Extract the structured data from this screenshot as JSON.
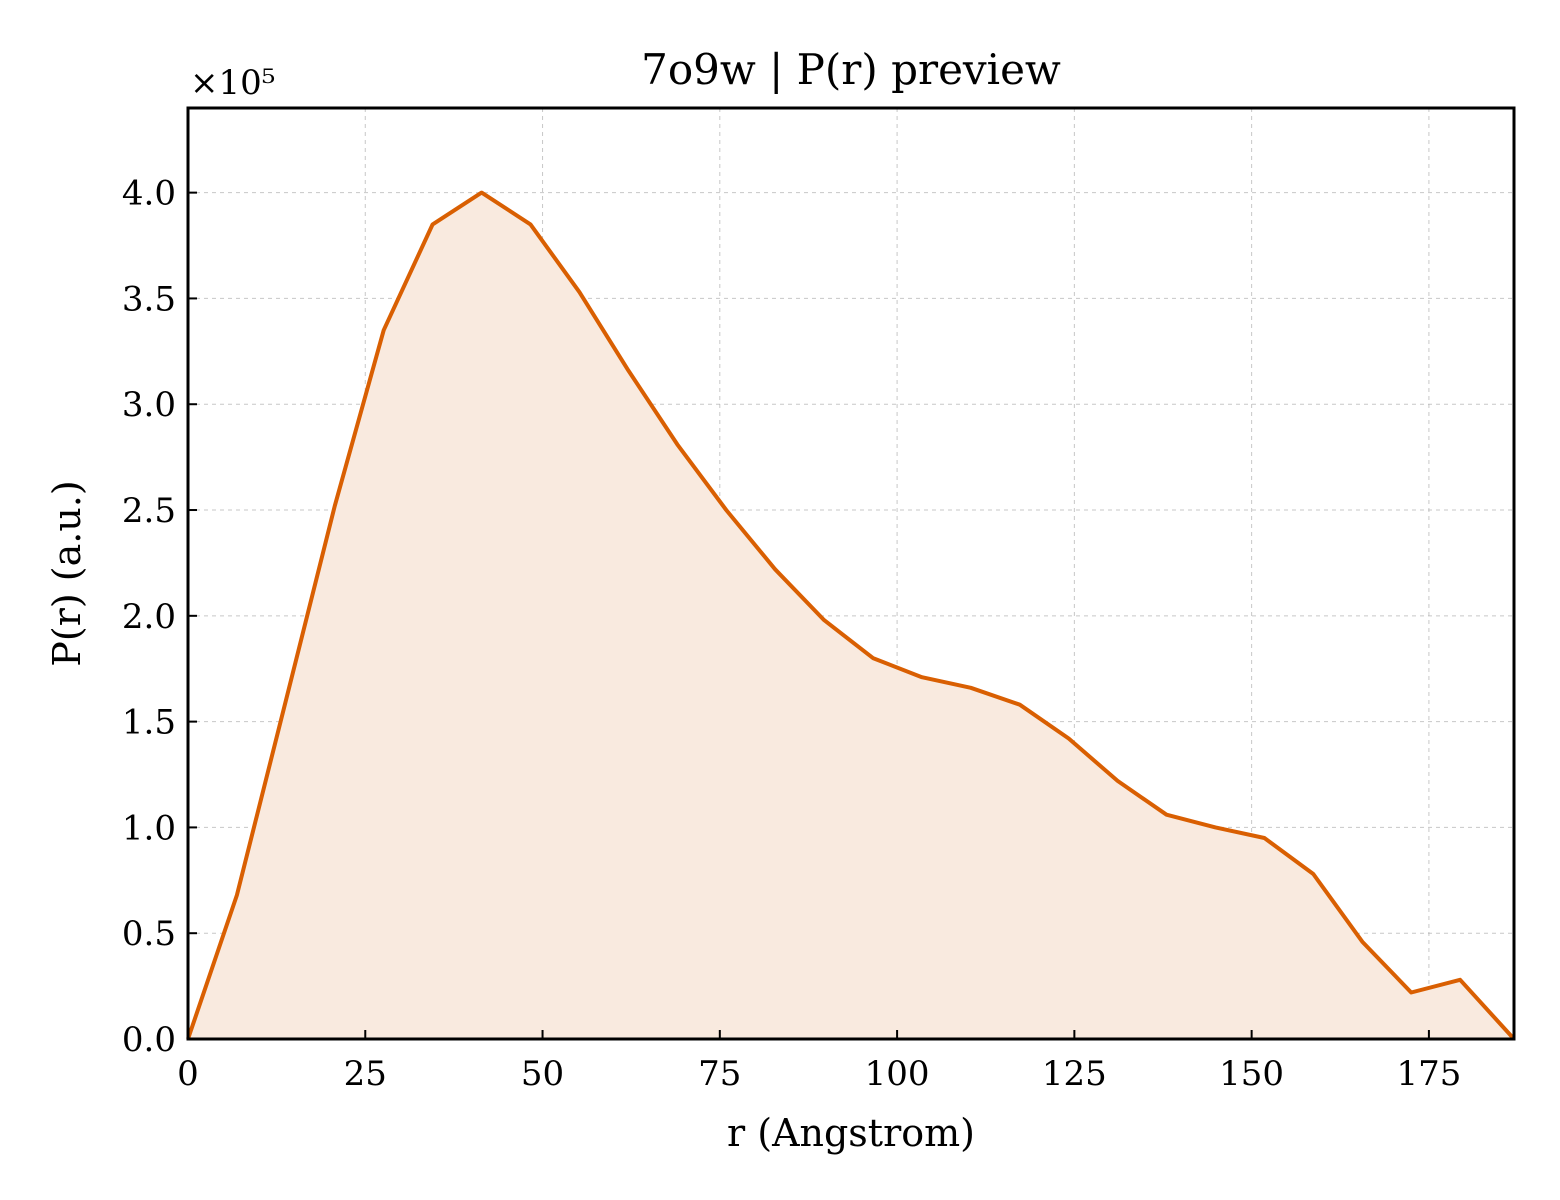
{
  "chart_data": {
    "type": "area",
    "title": "7o9w | P(r) preview",
    "xlabel": "r (Angstrom)",
    "ylabel": "P(r) (a.u.)",
    "y_multiplier_label": "×10⁵",
    "y_multiplier": 100000,
    "xlim": [
      0,
      187
    ],
    "ylim": [
      0,
      4.4
    ],
    "xticks": [
      0,
      25,
      50,
      75,
      100,
      125,
      150,
      175
    ],
    "yticks": [
      0.0,
      0.5,
      1.0,
      1.5,
      2.0,
      2.5,
      3.0,
      3.5,
      4.0
    ],
    "grid": true,
    "line_color": "#d95f02",
    "fill_color": "#f9eadf",
    "series": [
      {
        "x": [
          0,
          6.9,
          13.8,
          20.7,
          27.6,
          34.5,
          41.4,
          48.3,
          55.2,
          62.1,
          69.0,
          75.9,
          82.8,
          89.7,
          96.6,
          103.5,
          110.4,
          117.3,
          124.2,
          131.1,
          138.0,
          144.9,
          151.8,
          158.7,
          165.6,
          172.5,
          179.4,
          187.0
        ],
        "values": [
          0.0,
          0.68,
          1.6,
          2.52,
          3.35,
          3.85,
          4.0,
          3.85,
          3.53,
          3.16,
          2.81,
          2.5,
          2.22,
          1.98,
          1.8,
          1.71,
          1.66,
          1.58,
          1.42,
          1.22,
          1.06,
          1.0,
          0.95,
          0.78,
          0.46,
          0.22,
          0.28,
          0.0
        ]
      }
    ]
  }
}
